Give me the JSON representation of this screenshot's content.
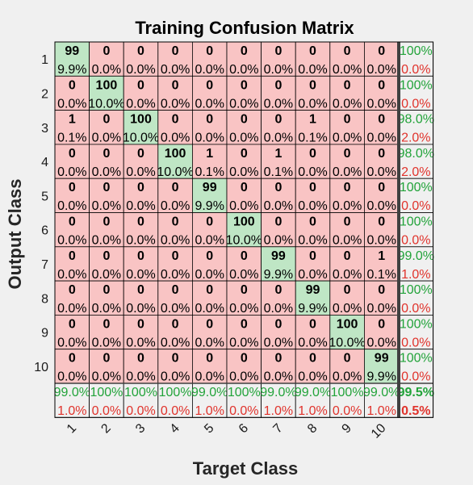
{
  "chart_data": {
    "type": "heatmap",
    "title": "Training Confusion Matrix",
    "xlabel": "Target Class",
    "ylabel": "Output Class",
    "classes": [
      "1",
      "2",
      "3",
      "4",
      "5",
      "6",
      "7",
      "8",
      "9",
      "10"
    ],
    "counts": [
      [
        99,
        0,
        0,
        0,
        0,
        0,
        0,
        0,
        0,
        0
      ],
      [
        0,
        100,
        0,
        0,
        0,
        0,
        0,
        0,
        0,
        0
      ],
      [
        1,
        0,
        100,
        0,
        0,
        0,
        0,
        1,
        0,
        0
      ],
      [
        0,
        0,
        0,
        100,
        1,
        0,
        1,
        0,
        0,
        0
      ],
      [
        0,
        0,
        0,
        0,
        99,
        0,
        0,
        0,
        0,
        0
      ],
      [
        0,
        0,
        0,
        0,
        0,
        100,
        0,
        0,
        0,
        0
      ],
      [
        0,
        0,
        0,
        0,
        0,
        0,
        99,
        0,
        0,
        1
      ],
      [
        0,
        0,
        0,
        0,
        0,
        0,
        0,
        99,
        0,
        0
      ],
      [
        0,
        0,
        0,
        0,
        0,
        0,
        0,
        0,
        100,
        0
      ],
      [
        0,
        0,
        0,
        0,
        0,
        0,
        0,
        0,
        0,
        99
      ]
    ],
    "cell_pcts": [
      [
        "9.9%",
        "0.0%",
        "0.0%",
        "0.0%",
        "0.0%",
        "0.0%",
        "0.0%",
        "0.0%",
        "0.0%",
        "0.0%"
      ],
      [
        "0.0%",
        "10.0%",
        "0.0%",
        "0.0%",
        "0.0%",
        "0.0%",
        "0.0%",
        "0.0%",
        "0.0%",
        "0.0%"
      ],
      [
        "0.1%",
        "0.0%",
        "10.0%",
        "0.0%",
        "0.0%",
        "0.0%",
        "0.0%",
        "0.1%",
        "0.0%",
        "0.0%"
      ],
      [
        "0.0%",
        "0.0%",
        "0.0%",
        "10.0%",
        "0.1%",
        "0.0%",
        "0.1%",
        "0.0%",
        "0.0%",
        "0.0%"
      ],
      [
        "0.0%",
        "0.0%",
        "0.0%",
        "0.0%",
        "9.9%",
        "0.0%",
        "0.0%",
        "0.0%",
        "0.0%",
        "0.0%"
      ],
      [
        "0.0%",
        "0.0%",
        "0.0%",
        "0.0%",
        "0.0%",
        "10.0%",
        "0.0%",
        "0.0%",
        "0.0%",
        "0.0%"
      ],
      [
        "0.0%",
        "0.0%",
        "0.0%",
        "0.0%",
        "0.0%",
        "0.0%",
        "9.9%",
        "0.0%",
        "0.0%",
        "0.1%"
      ],
      [
        "0.0%",
        "0.0%",
        "0.0%",
        "0.0%",
        "0.0%",
        "0.0%",
        "0.0%",
        "9.9%",
        "0.0%",
        "0.0%"
      ],
      [
        "0.0%",
        "0.0%",
        "0.0%",
        "0.0%",
        "0.0%",
        "0.0%",
        "0.0%",
        "0.0%",
        "10.0%",
        "0.0%"
      ],
      [
        "0.0%",
        "0.0%",
        "0.0%",
        "0.0%",
        "0.0%",
        "0.0%",
        "0.0%",
        "0.0%",
        "0.0%",
        "9.9%"
      ]
    ],
    "row_summary": [
      [
        "100%",
        "0.0%"
      ],
      [
        "100%",
        "0.0%"
      ],
      [
        "98.0%",
        "2.0%"
      ],
      [
        "98.0%",
        "2.0%"
      ],
      [
        "100%",
        "0.0%"
      ],
      [
        "100%",
        "0.0%"
      ],
      [
        "99.0%",
        "1.0%"
      ],
      [
        "100%",
        "0.0%"
      ],
      [
        "100%",
        "0.0%"
      ],
      [
        "100%",
        "0.0%"
      ]
    ],
    "col_summary": [
      [
        "99.0%",
        "1.0%"
      ],
      [
        "100%",
        "0.0%"
      ],
      [
        "100%",
        "0.0%"
      ],
      [
        "100%",
        "0.0%"
      ],
      [
        "99.0%",
        "1.0%"
      ],
      [
        "100%",
        "0.0%"
      ],
      [
        "99.0%",
        "1.0%"
      ],
      [
        "99.0%",
        "1.0%"
      ],
      [
        "100%",
        "0.0%"
      ],
      [
        "99.0%",
        "1.0%"
      ]
    ],
    "overall": [
      "99.5%",
      "0.5%"
    ],
    "colors": {
      "correct": "#bfe6c5",
      "incorrect": "#f9c4c4",
      "summary": "#f0f0f0",
      "correct_text": "#22a33a",
      "incorrect_text": "#e0332c",
      "separator": "#404040"
    }
  }
}
